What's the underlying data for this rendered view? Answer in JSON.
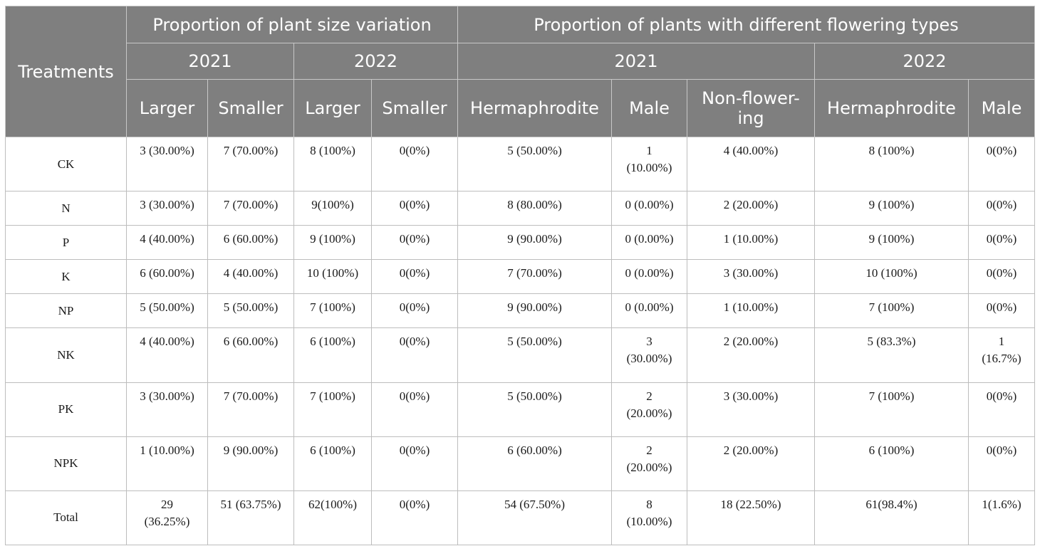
{
  "headers": {
    "treatments": "Treatments",
    "group_size": "Proportion of plant size variation",
    "group_flower": "Proportion of plants with different flowering types",
    "year_2021_size": "2021",
    "year_2022_size": "2022",
    "year_2021_flower": "2021",
    "year_2022_flower": "2022",
    "cols": [
      "Larger",
      "Smaller",
      "Larger",
      "Smaller",
      "Hermaphrodite",
      "Male",
      "Non-flower-\ning",
      "Hermaphrodite",
      "Male"
    ]
  },
  "rows": [
    {
      "treatment": "CK",
      "cells": [
        "3 (30.00%)",
        "7 (70.00%)",
        "8 (100%)",
        "0(0%)",
        "5 (50.00%)",
        "1\n(10.00%)",
        "4 (40.00%)",
        "8 (100%)",
        "0(0%)"
      ]
    },
    {
      "treatment": "N",
      "cells": [
        "3 (30.00%)",
        "7 (70.00%)",
        "9(100%)",
        "0(0%)",
        "8 (80.00%)",
        "0 (0.00%)",
        "2 (20.00%)",
        "9 (100%)",
        "0(0%)"
      ]
    },
    {
      "treatment": "P",
      "cells": [
        "4 (40.00%)",
        "6 (60.00%)",
        "9 (100%)",
        "0(0%)",
        "9 (90.00%)",
        "0 (0.00%)",
        "1 (10.00%)",
        "9 (100%)",
        "0(0%)"
      ]
    },
    {
      "treatment": "K",
      "cells": [
        "6 (60.00%)",
        "4 (40.00%)",
        "10 (100%)",
        "0(0%)",
        "7 (70.00%)",
        "0 (0.00%)",
        "3 (30.00%)",
        "10 (100%)",
        "0(0%)"
      ]
    },
    {
      "treatment": "NP",
      "cells": [
        "5 (50.00%)",
        "5 (50.00%)",
        "7 (100%)",
        "0(0%)",
        "9 (90.00%)",
        "0 (0.00%)",
        "1 (10.00%)",
        "7 (100%)",
        "0(0%)"
      ]
    },
    {
      "treatment": "NK",
      "cells": [
        "4 (40.00%)",
        "6 (60.00%)",
        "6 (100%)",
        "0(0%)",
        "5 (50.00%)",
        "3\n(30.00%)",
        "2 (20.00%)",
        "5 (83.3%)",
        "1\n(16.7%)"
      ]
    },
    {
      "treatment": "PK",
      "cells": [
        "3 (30.00%)",
        "7 (70.00%)",
        "7 (100%)",
        "0(0%)",
        "5 (50.00%)",
        "2\n(20.00%)",
        "3 (30.00%)",
        "7 (100%)",
        "0(0%)"
      ]
    },
    {
      "treatment": "NPK",
      "cells": [
        "1 (10.00%)",
        "9 (90.00%)",
        "6 (100%)",
        "0(0%)",
        "6 (60.00%)",
        "2\n(20.00%)",
        "2 (20.00%)",
        "6 (100%)",
        "0(0%)"
      ]
    },
    {
      "treatment": "Total",
      "cells": [
        "29\n(36.25%)",
        "51 (63.75%)",
        "62(100%)",
        "0(0%)",
        "54 (67.50%)",
        "8\n(10.00%)",
        "18 (22.50%)",
        "61(98.4%)",
        "1(1.6%)"
      ]
    }
  ],
  "colors": {
    "header_bg": "#7f7f7f",
    "header_text": "#ffffff",
    "border": "#bdbdbd"
  }
}
